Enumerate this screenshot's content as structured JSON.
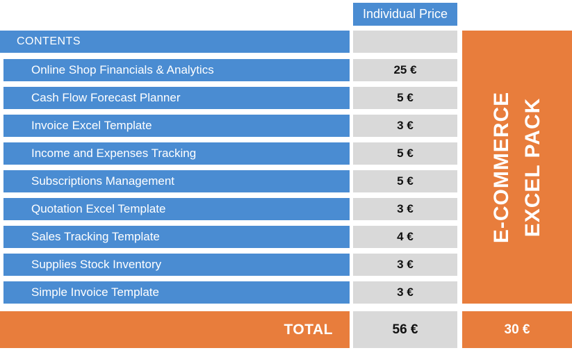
{
  "header": {
    "individual_price_label": "Individual Price"
  },
  "table": {
    "contents_label": "CONTENTS",
    "rows": [
      {
        "label": "Online Shop Financials & Analytics",
        "price": "25 €"
      },
      {
        "label": "Cash Flow Forecast Planner",
        "price": "5 €"
      },
      {
        "label": "Invoice Excel Template",
        "price": "3 €"
      },
      {
        "label": "Income and Expenses Tracking",
        "price": "5 €"
      },
      {
        "label": "Subscriptions Management",
        "price": "5 €"
      },
      {
        "label": "Quotation Excel Template",
        "price": "3 €"
      },
      {
        "label": "Sales Tracking Template",
        "price": "4 €"
      },
      {
        "label": "Supplies Stock Inventory",
        "price": "3 €"
      },
      {
        "label": "Simple Invoice Template",
        "price": "3 €"
      }
    ],
    "total_label": "TOTAL",
    "total_individual": "56 €",
    "pack_price": "30 €"
  },
  "banner": {
    "line1": "E-COMMERCE",
    "line2": "EXCEL PACK"
  },
  "colors": {
    "blue": "#4a8cd2",
    "orange": "#e87d3c",
    "gray": "#d9d9d9"
  },
  "chart_data": {
    "type": "table",
    "title": "E-COMMERCE EXCEL PACK",
    "columns": [
      "CONTENTS",
      "Individual Price"
    ],
    "rows": [
      [
        "Online Shop Financials & Analytics",
        25
      ],
      [
        "Cash Flow Forecast Planner",
        5
      ],
      [
        "Invoice Excel Template",
        3
      ],
      [
        "Income and Expenses Tracking",
        5
      ],
      [
        "Subscriptions Management",
        5
      ],
      [
        "Quotation Excel Template",
        3
      ],
      [
        "Sales Tracking Template",
        4
      ],
      [
        "Supplies Stock Inventory",
        3
      ],
      [
        "Simple Invoice Template",
        3
      ]
    ],
    "currency": "EUR",
    "total_individual": 56,
    "pack_price": 30
  }
}
